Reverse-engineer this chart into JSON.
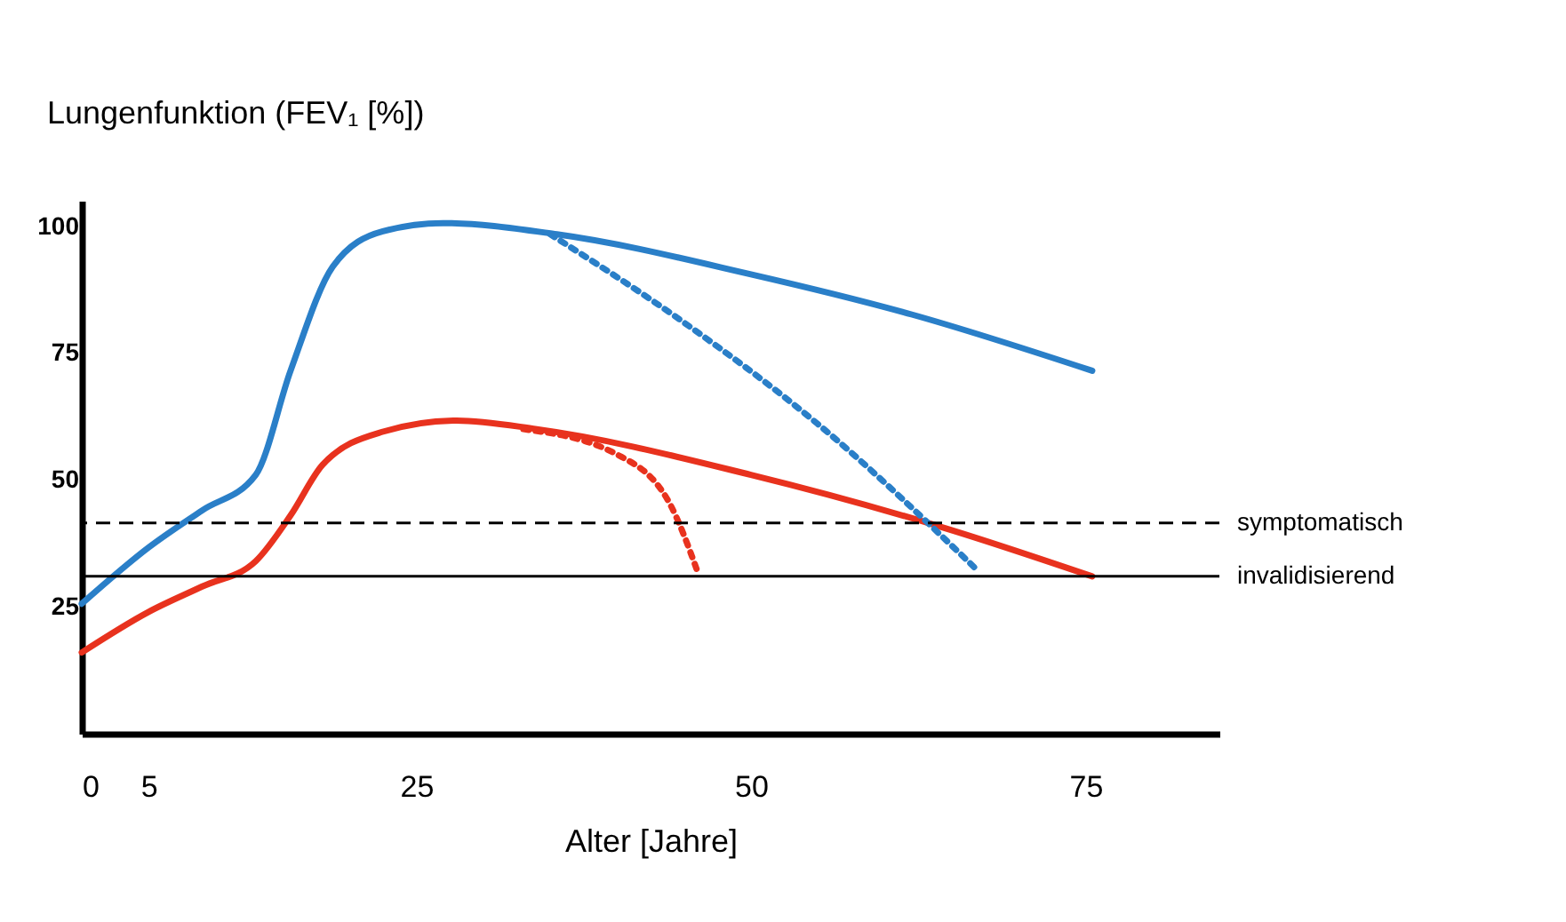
{
  "chart_data": {
    "type": "line",
    "xlabel": "Alter [Jahre]",
    "ylabel": "Lungenfunktion (FEV₁ [%])",
    "xlim": [
      0,
      85
    ],
    "xticks": [
      0,
      5,
      25,
      50,
      75
    ],
    "ylim": [
      0,
      105
    ],
    "yticks": [
      25,
      50,
      75,
      100
    ],
    "grid": false,
    "marker": "none",
    "line_style": "solid",
    "series": [
      {
        "color": "#2a7fc8",
        "x": [
          0,
          5,
          9,
          13,
          15.6,
          18.75,
          22.5,
          27,
          35.5,
          50,
          62,
          75.5
        ],
        "values": [
          25.6,
          36.7,
          44,
          51,
          71.5,
          92,
          99,
          100.6,
          98.4,
          90.5,
          82.6,
          71.5
        ]
      },
      {
        "color": "#e8321e",
        "x": [
          0,
          5,
          9,
          13,
          15.6,
          18,
          22.5,
          28,
          34,
          50,
          64.5,
          75.5
        ],
        "values": [
          16,
          24,
          29,
          34,
          43,
          53,
          59.5,
          61.7,
          60,
          51,
          40.5,
          31
        ]
      },
      {
        "color": "#2a7fc8",
        "line_style": "dotted",
        "x": [
          35,
          45,
          55,
          67
        ],
        "values": [
          98.4,
          81,
          61,
          32
        ]
      },
      {
        "color": "#e8321e",
        "line_style": "dotted",
        "x": [
          33,
          40,
          44,
          46
        ],
        "values": [
          60,
          55,
          45,
          32
        ]
      }
    ],
    "ref_lines": [
      {
        "axis": "y",
        "value": 41.5,
        "label": "symptomatisch",
        "color": "#000000",
        "line_style": "dashed"
      },
      {
        "axis": "y",
        "value": 31,
        "label": "invalidisierend",
        "color": "#000000",
        "line_style": "solid"
      }
    ]
  }
}
